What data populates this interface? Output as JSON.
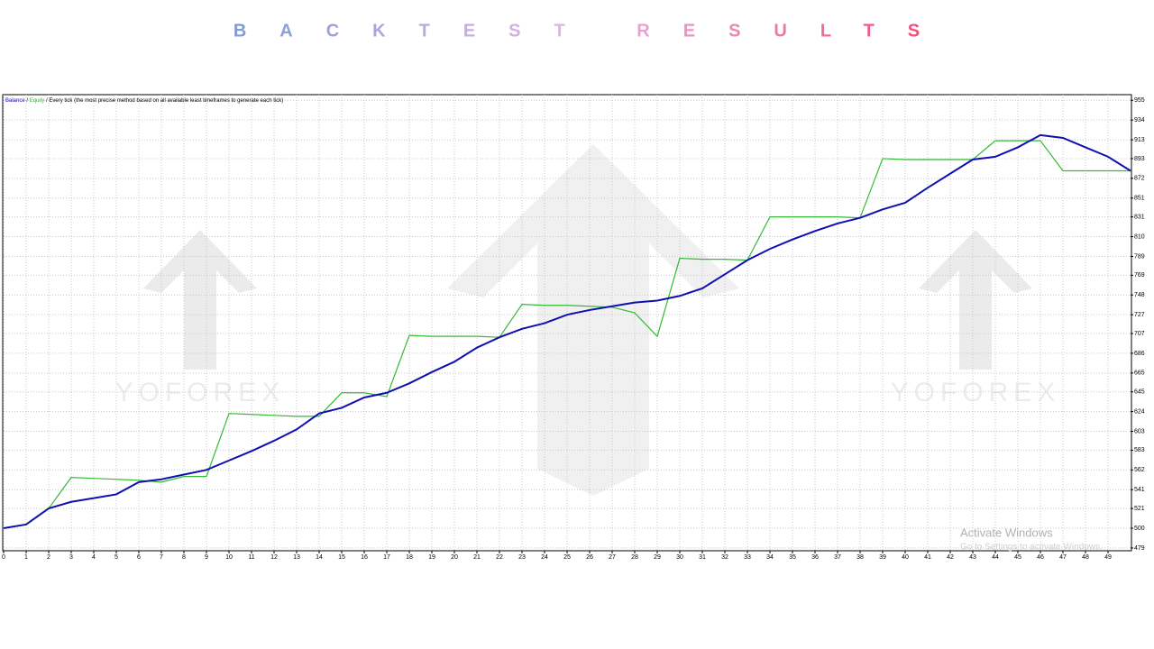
{
  "chart_data": {
    "type": "line",
    "title": "BACKTEST RESULTS",
    "legend_note": "Every tick (the most precise method based on all available least timeframes to generate each tick)",
    "watermark": "YOFOREX",
    "overlay": [
      "Activate Windows",
      "Go to Settings to activate Windows."
    ],
    "x": [
      0,
      1,
      2,
      3,
      4,
      5,
      6,
      7,
      8,
      9,
      10,
      11,
      12,
      13,
      14,
      15,
      16,
      17,
      18,
      19,
      20,
      21,
      22,
      23,
      24,
      25,
      26,
      27,
      28,
      29,
      30,
      31,
      32,
      33,
      34,
      35,
      36,
      37,
      38,
      39,
      40,
      41,
      42,
      43,
      44,
      45,
      46,
      47,
      48,
      49,
      50
    ],
    "series": [
      {
        "name": "Balance",
        "color": "#1010b0",
        "values": [
          500,
          504,
          521,
          528,
          532,
          536,
          549,
          552,
          557,
          562,
          572,
          582,
          593,
          605,
          622,
          628,
          639,
          644,
          654,
          666,
          677,
          692,
          703,
          712,
          718,
          727,
          732,
          736,
          740,
          742,
          747,
          755,
          770,
          785,
          797,
          807,
          816,
          824,
          830,
          839,
          846,
          862,
          877,
          892,
          895,
          905,
          918,
          915,
          905,
          895,
          880
        ]
      },
      {
        "name": "Equity",
        "color": "#33bb33",
        "values": [
          500,
          504,
          521,
          554,
          553,
          552,
          551,
          549,
          555,
          555,
          622,
          621,
          620,
          619,
          619,
          644,
          644,
          640,
          705,
          704,
          704,
          704,
          703,
          738,
          737,
          737,
          736,
          735,
          729,
          704,
          787,
          786,
          786,
          785,
          831,
          831,
          831,
          831,
          830,
          893,
          892,
          892,
          892,
          892,
          912,
          912,
          912,
          880,
          880,
          880,
          880
        ]
      }
    ],
    "xlim": [
      0,
      50
    ],
    "xticks": [
      0,
      1,
      2,
      3,
      4,
      5,
      6,
      7,
      8,
      9,
      10,
      11,
      12,
      13,
      14,
      15,
      16,
      17,
      18,
      19,
      20,
      21,
      22,
      23,
      24,
      25,
      26,
      27,
      28,
      29,
      30,
      31,
      32,
      33,
      34,
      35,
      36,
      37,
      38,
      39,
      40,
      41,
      42,
      43,
      44,
      45,
      46,
      47,
      48,
      49
    ],
    "ylim": [
      477,
      961
    ],
    "yticks": [
      479,
      500,
      521,
      541,
      562,
      583,
      603,
      624,
      645,
      665,
      686,
      707,
      727,
      748,
      769,
      789,
      810,
      831,
      851,
      872,
      893,
      913,
      934,
      955
    ],
    "grid": true
  }
}
